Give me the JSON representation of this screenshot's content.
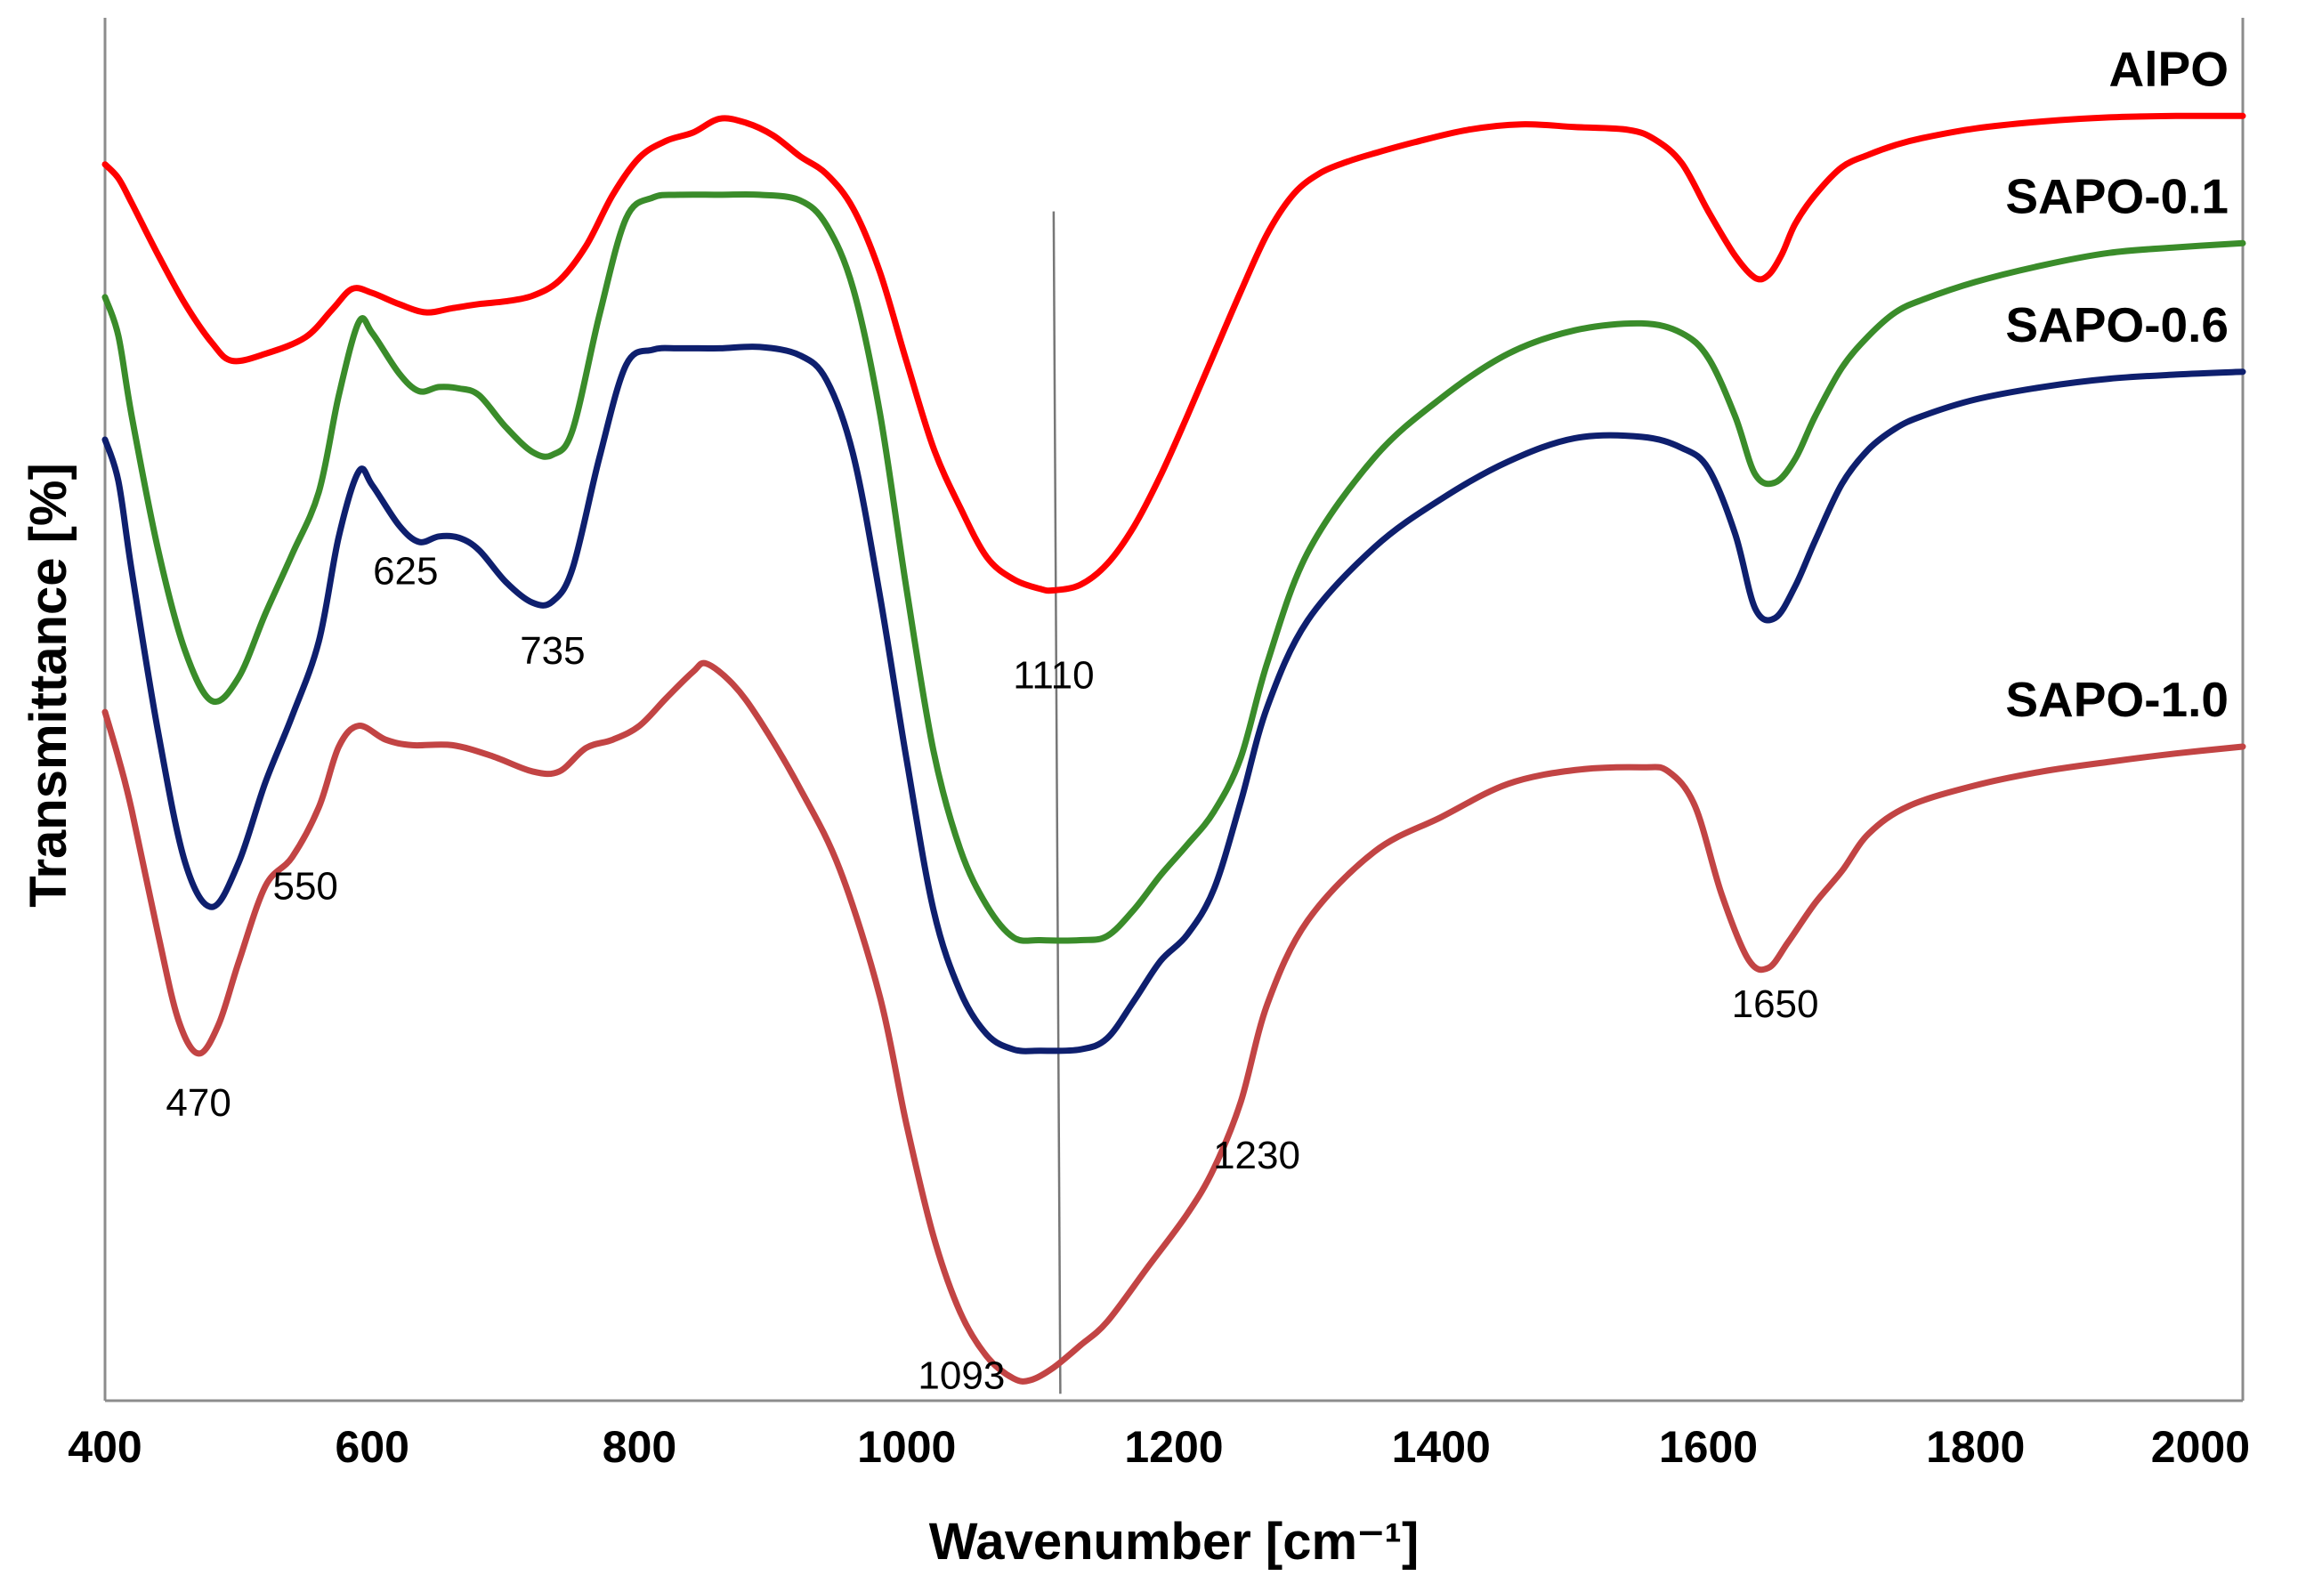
{
  "chart_data": {
    "type": "line",
    "title": "",
    "xlabel": "Wavenumber [cm⁻¹]",
    "ylabel": "Transmittance [%]",
    "xlim": [
      400,
      2000
    ],
    "ylim": [
      0,
      100
    ],
    "x_ticks": [
      "400",
      "600",
      "800",
      "1000",
      "1200",
      "1400",
      "1600",
      "1800",
      "2000"
    ],
    "y_ticks": [],
    "grid": false,
    "legend": "none (series labelled inline at right)",
    "series": [
      {
        "name": "AlPO",
        "color": "#ff0000",
        "x": [
          400,
          410,
          420,
          440,
          460,
          480,
          495,
          520,
          550,
          570,
          585,
          600,
          620,
          640,
          660,
          680,
          700,
          720,
          740,
          760,
          780,
          800,
          820,
          840,
          860,
          880,
          900,
          920,
          940,
          960,
          980,
          1000,
          1020,
          1040,
          1060,
          1080,
          1100,
          1110,
          1130,
          1150,
          1170,
          1190,
          1210,
          1230,
          1250,
          1270,
          1290,
          1310,
          1330,
          1350,
          1380,
          1420,
          1460,
          1500,
          1540,
          1560,
          1580,
          1600,
          1620,
          1635,
          1645,
          1655,
          1665,
          1680,
          1700,
          1720,
          1740,
          1760,
          1800,
          1850,
          1900,
          1950,
          2000
        ],
        "y": [
          89.4,
          88.4,
          86.6,
          82.8,
          79.3,
          76.5,
          75.2,
          75.7,
          76.9,
          78.9,
          80.4,
          80.1,
          79.3,
          78.7,
          79.0,
          79.3,
          79.5,
          79.9,
          81.0,
          83.5,
          87.2,
          89.9,
          91.1,
          91.7,
          92.7,
          92.4,
          91.5,
          90.0,
          88.7,
          86.2,
          81.6,
          75.1,
          68.9,
          64.6,
          61.0,
          59.4,
          58.7,
          58.6,
          59.0,
          60.5,
          63.2,
          66.9,
          71.2,
          75.7,
          80.2,
          84.4,
          87.3,
          88.8,
          89.6,
          90.2,
          91.0,
          91.9,
          92.3,
          92.1,
          91.9,
          91.2,
          89.5,
          86.0,
          82.8,
          81.2,
          81.4,
          82.9,
          85.1,
          87.2,
          89.2,
          90.1,
          90.8,
          91.3,
          92.0,
          92.5,
          92.8,
          92.9,
          92.9
        ]
      },
      {
        "name": "SAPO-0.1",
        "color": "#3a8c2a",
        "x": [
          400,
          410,
          420,
          440,
          460,
          480,
          500,
          520,
          540,
          560,
          575,
          590,
          600,
          620,
          635,
          650,
          665,
          680,
          700,
          720,
          735,
          750,
          770,
          790,
          810,
          830,
          860,
          890,
          920,
          940,
          960,
          980,
          1000,
          1020,
          1040,
          1060,
          1080,
          1100,
          1130,
          1150,
          1170,
          1190,
          1210,
          1230,
          1250,
          1270,
          1300,
          1350,
          1400,
          1450,
          1500,
          1550,
          1580,
          1600,
          1620,
          1635,
          1650,
          1665,
          1680,
          1700,
          1720,
          1740,
          1760,
          1800,
          1850,
          1900,
          1950,
          2000
        ],
        "y": [
          79.8,
          77.0,
          71.2,
          61.4,
          54.2,
          50.6,
          52.3,
          56.9,
          61.2,
          65.7,
          72.7,
          78.0,
          77.2,
          74.3,
          73.0,
          73.3,
          73.2,
          72.7,
          70.4,
          68.6,
          68.4,
          70.2,
          78.5,
          85.5,
          87.0,
          87.2,
          87.2,
          87.2,
          86.8,
          85.0,
          80.4,
          71.4,
          58.6,
          47.0,
          39.9,
          35.8,
          33.5,
          33.3,
          33.3,
          33.6,
          35.5,
          38.0,
          40.2,
          42.6,
          46.5,
          53.4,
          61.3,
          68.2,
          72.5,
          75.7,
          77.4,
          77.9,
          77.2,
          75.4,
          71.2,
          67.0,
          66.4,
          68.1,
          71.2,
          74.7,
          77.0,
          78.7,
          79.6,
          80.9,
          82.1,
          83.0,
          83.4,
          83.7
        ]
      },
      {
        "name": "SAPO-0.6",
        "color": "#0e1f6e",
        "x": [
          400,
          410,
          420,
          440,
          460,
          480,
          500,
          520,
          540,
          560,
          575,
          590,
          600,
          620,
          635,
          650,
          665,
          680,
          700,
          720,
          735,
          750,
          770,
          790,
          810,
          830,
          860,
          890,
          920,
          940,
          960,
          980,
          1000,
          1020,
          1040,
          1060,
          1080,
          1100,
          1130,
          1150,
          1170,
          1190,
          1210,
          1230,
          1250,
          1270,
          1300,
          1350,
          1400,
          1450,
          1500,
          1550,
          1580,
          1600,
          1620,
          1635,
          1650,
          1665,
          1680,
          1700,
          1720,
          1740,
          1760,
          1800,
          1850,
          1900,
          1950,
          2000
        ],
        "y": [
          69.5,
          66.5,
          60.0,
          48.2,
          38.9,
          35.7,
          38.9,
          44.7,
          49.5,
          54.9,
          62.5,
          67.2,
          66.2,
          63.3,
          62.1,
          62.5,
          62.4,
          61.5,
          59.2,
          57.7,
          57.8,
          60.2,
          68.2,
          74.9,
          76.0,
          76.1,
          76.1,
          76.2,
          75.6,
          73.8,
          68.4,
          58.2,
          46.3,
          35.5,
          29.6,
          26.5,
          25.4,
          25.3,
          25.4,
          26.2,
          28.9,
          31.8,
          33.7,
          37.0,
          43.3,
          50.2,
          56.4,
          61.7,
          65.2,
          67.9,
          69.6,
          69.7,
          68.9,
          67.4,
          62.7,
          57.3,
          56.6,
          58.9,
          62.2,
          66.3,
          68.8,
          70.3,
          71.2,
          72.4,
          73.3,
          73.9,
          74.2,
          74.4
        ]
      },
      {
        "name": "SAPO-1.0",
        "color": "#c24444",
        "x": [
          400,
          410,
          420,
          440,
          455,
          470,
          485,
          500,
          520,
          540,
          560,
          575,
          590,
          610,
          630,
          660,
          690,
          720,
          740,
          760,
          780,
          800,
          820,
          840,
          850,
          870,
          890,
          920,
          950,
          980,
          1000,
          1020,
          1040,
          1060,
          1080,
          1093,
          1110,
          1130,
          1150,
          1180,
          1210,
          1230,
          1250,
          1270,
          1300,
          1350,
          1400,
          1450,
          1500,
          1550,
          1570,
          1590,
          1610,
          1630,
          1645,
          1660,
          1680,
          1700,
          1720,
          1750,
          1800,
          1850,
          1900,
          1950,
          2000
        ],
        "y": [
          49.8,
          46.5,
          42.7,
          33.6,
          27.5,
          25.1,
          27.2,
          31.7,
          37.2,
          39.3,
          42.9,
          47.3,
          48.8,
          47.8,
          47.4,
          47.4,
          46.6,
          45.5,
          45.5,
          47.2,
          47.8,
          48.8,
          50.8,
          52.7,
          53.3,
          51.8,
          49.2,
          44.3,
          38.4,
          29.2,
          19.9,
          11.9,
          6.4,
          3.2,
          1.6,
          1.5,
          2.4,
          4.0,
          5.7,
          9.6,
          13.5,
          16.8,
          21.6,
          28.7,
          34.7,
          39.7,
          42.2,
          44.6,
          45.6,
          45.8,
          45.5,
          43.0,
          36.6,
          31.9,
          31.3,
          33.2,
          36.0,
          38.3,
          41.0,
          43.0,
          44.5,
          45.5,
          46.2,
          46.8,
          47.3
        ]
      }
    ],
    "series_labels": [
      "AlPO",
      "SAPO-0.1",
      "SAPO-0.6",
      "SAPO-1.0"
    ],
    "annotations": [
      {
        "text": "470",
        "x": 470
      },
      {
        "text": "550",
        "x": 550
      },
      {
        "text": "625",
        "x": 625
      },
      {
        "text": "735",
        "x": 735
      },
      {
        "text": "1110",
        "x": 1110
      },
      {
        "text": "1093",
        "x": 1093
      },
      {
        "text": "1230",
        "x": 1230
      },
      {
        "text": "1650",
        "x": 1650
      }
    ],
    "reference_line": {
      "x": [
        1110,
        1115
      ],
      "y": [
        86,
        0.5
      ],
      "color": "#777777"
    }
  }
}
